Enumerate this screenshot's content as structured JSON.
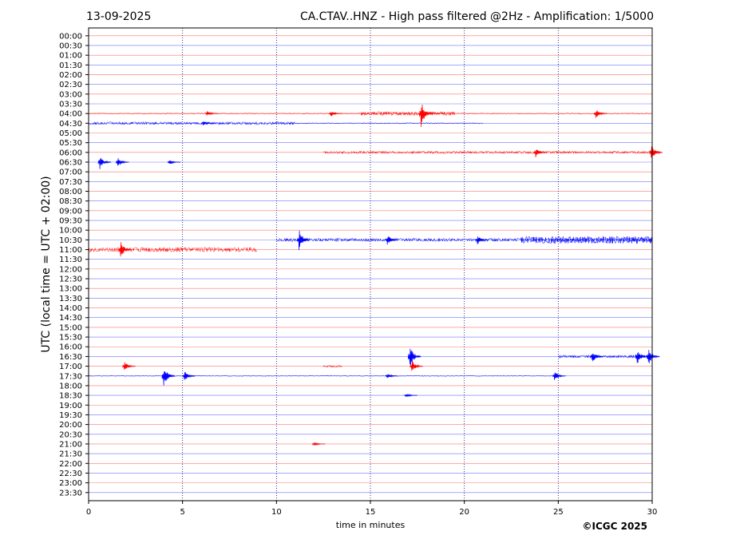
{
  "chart_data": {
    "type": "line",
    "title_left": "13-09-2025",
    "title_right": "CA.CTAV..HNZ - High pass filtered @2Hz - Amplification: 1/5000",
    "xlabel": "time in minutes",
    "ylabel": "UTC (local time = UTC + 02:00)",
    "copyright": "©ICGC 2025",
    "xlim": [
      0,
      30
    ],
    "x_ticks": [
      0,
      5,
      10,
      15,
      20,
      25,
      30
    ],
    "grid": "vertical dotted at 5-minute intervals",
    "colors": {
      "red": "#ff0000",
      "blue": "#0000ff",
      "grid": "#000080"
    },
    "rows": [
      "00:00",
      "00:30",
      "01:00",
      "01:30",
      "02:00",
      "02:30",
      "03:00",
      "03:30",
      "04:00",
      "04:30",
      "05:00",
      "05:30",
      "06:00",
      "06:30",
      "07:00",
      "07:30",
      "08:00",
      "08:30",
      "09:00",
      "09:30",
      "10:00",
      "10:30",
      "11:00",
      "11:30",
      "12:00",
      "12:30",
      "13:00",
      "13:30",
      "14:00",
      "14:30",
      "15:00",
      "15:30",
      "16:00",
      "16:30",
      "17:00",
      "17:30",
      "18:00",
      "18:30",
      "19:00",
      "19:30",
      "20:00",
      "20:30",
      "21:00",
      "21:30",
      "22:00",
      "22:30",
      "23:00",
      "23:30"
    ],
    "row_colors": [
      "red",
      "blue",
      "red",
      "blue",
      "red",
      "blue",
      "red",
      "blue",
      "red",
      "blue",
      "red",
      "blue",
      "red",
      "blue",
      "red",
      "blue",
      "red",
      "blue",
      "red",
      "blue",
      "red",
      "blue",
      "red",
      "blue",
      "red",
      "blue",
      "red",
      "blue",
      "red",
      "blue",
      "red",
      "blue",
      "red",
      "blue",
      "red",
      "blue",
      "red",
      "blue",
      "red",
      "blue",
      "red",
      "blue",
      "red",
      "blue",
      "red",
      "blue",
      "red",
      "blue"
    ],
    "noise_segments": [
      {
        "row": "04:00",
        "start": 0,
        "end": 30,
        "level": 0.12
      },
      {
        "row": "04:00",
        "start": 14.5,
        "end": 19.5,
        "level": 0.45
      },
      {
        "row": "04:30",
        "start": 0,
        "end": 11,
        "level": 0.35
      },
      {
        "row": "04:30",
        "start": 11,
        "end": 21,
        "level": 0.12
      },
      {
        "row": "06:00",
        "start": 12.5,
        "end": 30,
        "level": 0.3
      },
      {
        "row": "10:30",
        "start": 10,
        "end": 30,
        "level": 0.4
      },
      {
        "row": "10:30",
        "start": 23,
        "end": 30,
        "level": 0.9
      },
      {
        "row": "11:00",
        "start": 0,
        "end": 9,
        "level": 0.55
      },
      {
        "row": "16:30",
        "start": 25,
        "end": 30,
        "level": 0.35
      },
      {
        "row": "17:00",
        "start": 12.5,
        "end": 13.5,
        "level": 0.25
      },
      {
        "row": "17:30",
        "start": 0,
        "end": 25,
        "level": 0.1
      }
    ],
    "events": [
      {
        "row": "04:00",
        "time": 17.7,
        "amplitude": 2.0
      },
      {
        "row": "04:00",
        "time": 6.3,
        "amplitude": 0.4
      },
      {
        "row": "04:00",
        "time": 12.9,
        "amplitude": 0.5
      },
      {
        "row": "04:00",
        "time": 27.0,
        "amplitude": 0.7
      },
      {
        "row": "04:30",
        "time": 6.1,
        "amplitude": 0.4
      },
      {
        "row": "06:00",
        "time": 23.8,
        "amplitude": 0.7
      },
      {
        "row": "06:00",
        "time": 29.95,
        "amplitude": 1.2
      },
      {
        "row": "06:30",
        "time": 0.6,
        "amplitude": 1.1
      },
      {
        "row": "06:30",
        "time": 1.55,
        "amplitude": 0.8
      },
      {
        "row": "06:30",
        "time": 4.3,
        "amplitude": 0.4
      },
      {
        "row": "10:30",
        "time": 11.2,
        "amplitude": 1.5
      },
      {
        "row": "10:30",
        "time": 15.9,
        "amplitude": 0.8
      },
      {
        "row": "10:30",
        "time": 20.7,
        "amplitude": 0.7
      },
      {
        "row": "11:00",
        "time": 1.7,
        "amplitude": 1.2
      },
      {
        "row": "16:30",
        "time": 17.1,
        "amplitude": 1.9
      },
      {
        "row": "16:30",
        "time": 26.8,
        "amplitude": 1.0
      },
      {
        "row": "16:30",
        "time": 29.2,
        "amplitude": 1.2
      },
      {
        "row": "16:30",
        "time": 29.8,
        "amplitude": 1.3
      },
      {
        "row": "17:00",
        "time": 17.2,
        "amplitude": 0.9
      },
      {
        "row": "17:00",
        "time": 1.9,
        "amplitude": 0.8
      },
      {
        "row": "17:30",
        "time": 4.0,
        "amplitude": 1.7
      },
      {
        "row": "17:30",
        "time": 5.1,
        "amplitude": 0.8
      },
      {
        "row": "17:30",
        "time": 24.8,
        "amplitude": 0.8
      },
      {
        "row": "17:30",
        "time": 15.9,
        "amplitude": 0.4
      },
      {
        "row": "18:30",
        "time": 16.9,
        "amplitude": 0.3
      },
      {
        "row": "21:00",
        "time": 12.0,
        "amplitude": 0.3
      }
    ]
  }
}
